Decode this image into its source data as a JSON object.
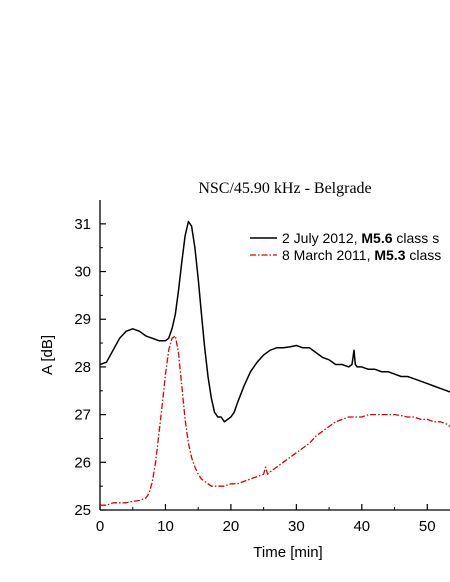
{
  "chart_data": {
    "type": "line",
    "title": "NSC/45.90 kHz - Belgrade",
    "xlabel": "Time [min]",
    "ylabel": "A [dB]",
    "xlim": [
      0,
      54
    ],
    "ylim": [
      25,
      31.5
    ],
    "x_ticks": [
      0,
      10,
      20,
      30,
      40,
      50
    ],
    "y_ticks": [
      25,
      26,
      27,
      28,
      29,
      30,
      31
    ],
    "grid": false,
    "legend_position": "top-right",
    "series": [
      {
        "name_prefix": "2 July 2012, ",
        "name_bold": "M5.6",
        "name_suffix": " class s",
        "color": "#000000",
        "line_style": "solid",
        "x": [
          0,
          1,
          2,
          3,
          4,
          5,
          6,
          7,
          8,
          9,
          10,
          10.5,
          11,
          11.5,
          12,
          12.5,
          13,
          13.5,
          14,
          14.5,
          15,
          15.5,
          16,
          16.5,
          17,
          17.5,
          18,
          18.5,
          19,
          19.5,
          20,
          20.5,
          21,
          22,
          23,
          24,
          25,
          26,
          27,
          28,
          29,
          30,
          31,
          32,
          33,
          34,
          35,
          36,
          37,
          38,
          38.5,
          38.8,
          39,
          39.3,
          40,
          41,
          42,
          43,
          44,
          45,
          46,
          47,
          48,
          49,
          50,
          51,
          52,
          53,
          54
        ],
        "y": [
          28.05,
          28.1,
          28.35,
          28.6,
          28.75,
          28.8,
          28.75,
          28.65,
          28.6,
          28.55,
          28.55,
          28.6,
          28.8,
          29.1,
          29.6,
          30.2,
          30.75,
          31.05,
          30.95,
          30.5,
          29.85,
          29.1,
          28.4,
          27.8,
          27.35,
          27.05,
          26.95,
          26.95,
          26.85,
          26.9,
          26.95,
          27.05,
          27.25,
          27.6,
          27.9,
          28.1,
          28.25,
          28.35,
          28.4,
          28.4,
          28.42,
          28.45,
          28.4,
          28.4,
          28.3,
          28.2,
          28.15,
          28.05,
          28.05,
          28.0,
          28.05,
          28.35,
          28.05,
          28.0,
          28.0,
          27.95,
          27.95,
          27.9,
          27.9,
          27.85,
          27.8,
          27.8,
          27.75,
          27.7,
          27.65,
          27.6,
          27.55,
          27.5,
          27.45
        ]
      },
      {
        "name_prefix": "8 March 2011, ",
        "name_bold": "M5.3",
        "name_suffix": " class",
        "color": "#dd0000",
        "line_style": "dash-dot",
        "x": [
          0,
          1,
          2,
          3,
          4,
          5,
          6,
          7,
          7.5,
          8,
          8.5,
          9,
          9.5,
          10,
          10.5,
          11,
          11.5,
          12,
          12.5,
          13,
          13.5,
          14,
          14.5,
          15,
          15.5,
          16,
          16.5,
          17,
          18,
          19,
          20,
          21,
          22,
          23,
          24,
          25,
          25.3,
          25.6,
          26,
          27,
          28,
          29,
          30,
          31,
          32,
          33,
          34,
          35,
          36,
          37,
          38,
          39,
          40,
          41,
          42,
          43,
          44,
          45,
          46,
          47,
          48,
          49,
          50,
          51,
          52,
          53,
          54
        ],
        "y": [
          25.1,
          25.1,
          25.15,
          25.15,
          25.15,
          25.18,
          25.2,
          25.25,
          25.35,
          25.6,
          26.0,
          26.6,
          27.2,
          27.85,
          28.35,
          28.6,
          28.65,
          28.3,
          27.6,
          26.9,
          26.4,
          26.1,
          25.9,
          25.75,
          25.65,
          25.6,
          25.55,
          25.5,
          25.5,
          25.5,
          25.55,
          25.55,
          25.6,
          25.65,
          25.7,
          25.75,
          25.9,
          25.75,
          25.8,
          25.9,
          26.0,
          26.1,
          26.2,
          26.3,
          26.4,
          26.55,
          26.65,
          26.75,
          26.85,
          26.9,
          26.95,
          26.95,
          26.95,
          27.0,
          27.0,
          27.0,
          27.0,
          27.0,
          26.98,
          26.95,
          26.95,
          26.9,
          26.9,
          26.85,
          26.85,
          26.8,
          26.7
        ]
      }
    ]
  }
}
